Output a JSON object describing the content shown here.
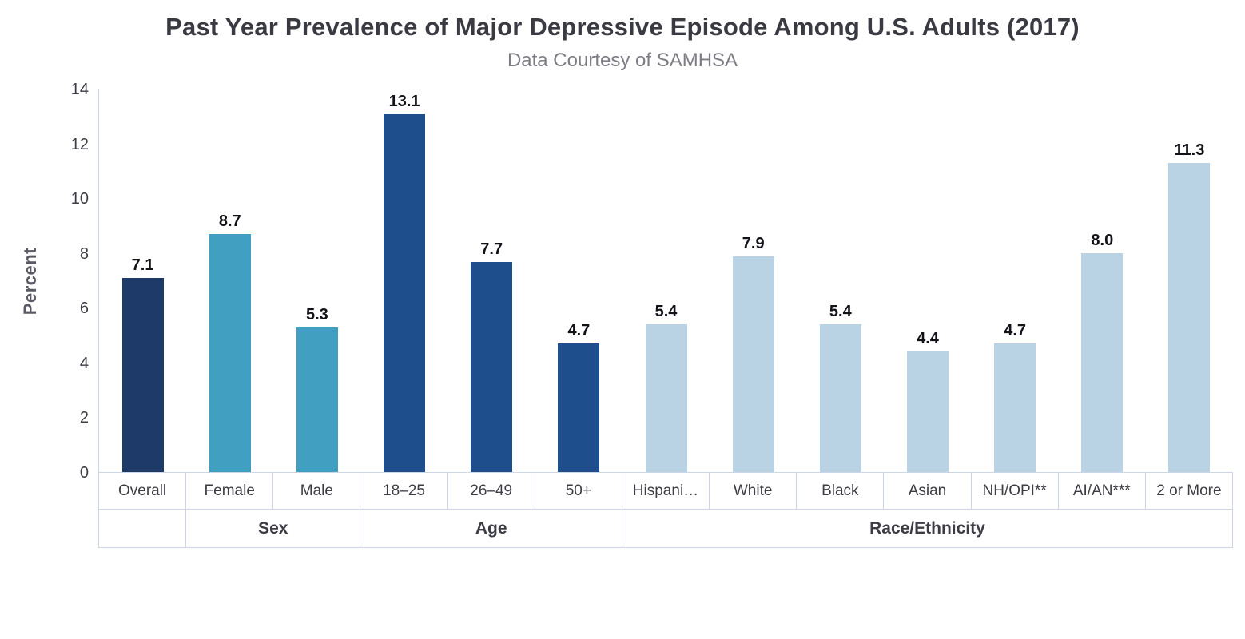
{
  "chart_data": {
    "type": "bar",
    "title": "Past Year Prevalence of Major Depressive Episode Among U.S. Adults (2017)",
    "subtitle": "Data Courtesy of SAMHSA",
    "ylabel": "Percent",
    "xlabel": "",
    "ylim": [
      0,
      14
    ],
    "yticks": [
      0,
      2,
      4,
      6,
      8,
      10,
      12,
      14
    ],
    "grid": false,
    "legend": false,
    "categories": [
      "Overall",
      "Female",
      "Male",
      "18–25",
      "26–49",
      "50+",
      "Hispani…",
      "White",
      "Black",
      "Asian",
      "NH/OPI**",
      "AI/AN***",
      "2 or More"
    ],
    "values": [
      7.1,
      8.7,
      5.3,
      13.1,
      7.7,
      4.7,
      5.4,
      7.9,
      5.4,
      4.4,
      4.7,
      8.0,
      11.3
    ],
    "value_labels": [
      "7.1",
      "8.7",
      "5.3",
      "13.1",
      "7.7",
      "4.7",
      "5.4",
      "7.9",
      "5.4",
      "4.4",
      "4.7",
      "8.0",
      "11.3"
    ],
    "bar_colors": [
      "#1d3a68",
      "#41a0c2",
      "#41a0c2",
      "#1e4e8c",
      "#1e4e8c",
      "#1e4e8c",
      "#b9d3e4",
      "#b9d3e4",
      "#b9d3e4",
      "#b9d3e4",
      "#b9d3e4",
      "#b9d3e4",
      "#b9d3e4"
    ],
    "groups": [
      {
        "label": "",
        "span": 1
      },
      {
        "label": "Sex",
        "span": 2
      },
      {
        "label": "Age",
        "span": 3
      },
      {
        "label": "Race/Ethnicity",
        "span": 7
      }
    ],
    "style_colors": {
      "overall_bar": "#1d3a68",
      "sex_bars": "#41a0c2",
      "age_bars": "#1e4e8c",
      "race_bars": "#b9d3e4",
      "axis_line": "#ccd6e4"
    }
  }
}
